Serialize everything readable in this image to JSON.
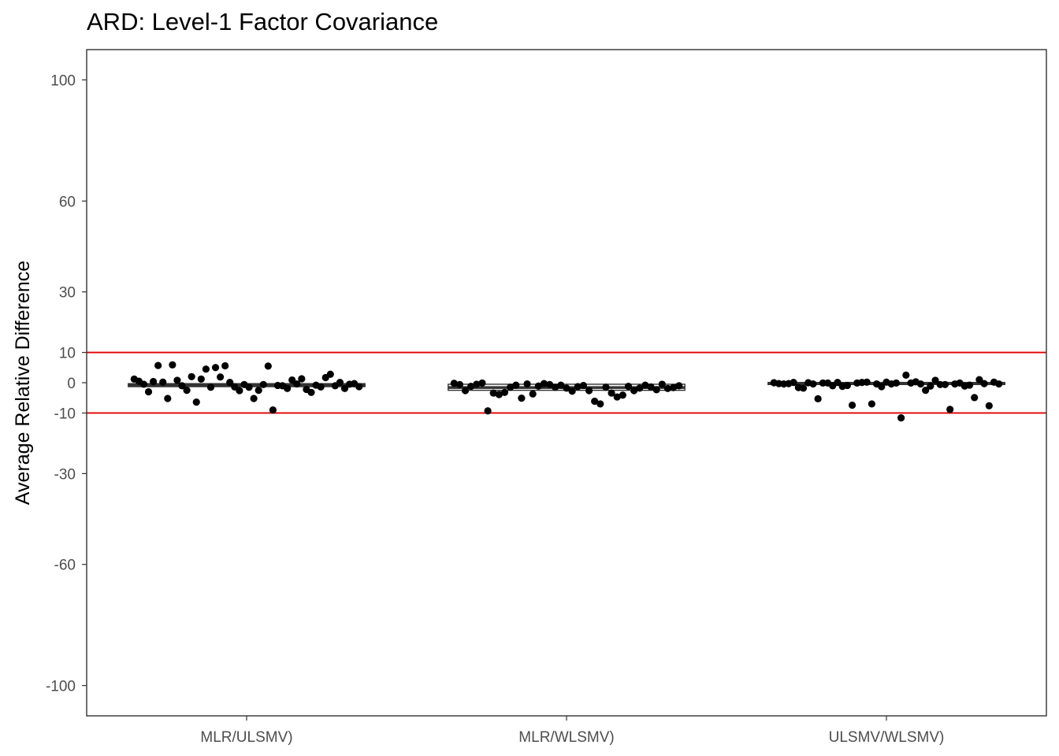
{
  "chart_data": {
    "type": "box",
    "title": "ARD: Level-1 Factor Covariance",
    "xlabel": "",
    "ylabel": "Average Relative Difference",
    "categories": [
      "MLR/ULSMV)",
      "MLR/WLSMV)",
      "ULSMV/WLSMV)"
    ],
    "y_ticks": [
      100,
      60,
      30,
      10,
      0,
      -10,
      -30,
      -60,
      -100
    ],
    "y_tick_labels": [
      "100",
      "60",
      "30",
      "10",
      "0",
      "-10",
      "-30",
      "-60",
      "-100"
    ],
    "ylim": [
      -110,
      110
    ],
    "reference_lines": [
      {
        "value": 10,
        "color": "#e00000"
      },
      {
        "value": -10,
        "color": "#e00000"
      }
    ],
    "boxes": [
      {
        "category": "MLR/ULSMV)",
        "q1": -1.3,
        "median": -0.8,
        "q3": -0.3
      },
      {
        "category": "MLR/WLSMV)",
        "q1": -2.5,
        "median": -1.6,
        "q3": -0.5
      },
      {
        "category": "ULSMV/WLSMV)",
        "q1": -0.6,
        "median": -0.2,
        "q3": 0.1
      }
    ],
    "points": [
      {
        "category": "MLR/ULSMV)",
        "y": [
          1.2,
          0.5,
          -0.5,
          -3,
          0.4,
          5.7,
          0.2,
          -5.2,
          5.9,
          0.8,
          -1,
          -2.5,
          2,
          -6.4,
          1.2,
          4.5,
          -1.5,
          5,
          1.9,
          5.6,
          0.1,
          -1.4,
          -2.6,
          -0.6,
          -1.5,
          -5.2,
          -2.5,
          -0.6,
          5.5,
          -9,
          -0.9,
          -1,
          -1.9,
          0.9,
          -0.4,
          1.3,
          -2.2,
          -3.2,
          -0.8,
          -1.4,
          1.7,
          2.8,
          -1,
          0.1,
          -1.9,
          -0.5,
          -0.3,
          -1.3
        ]
      },
      {
        "category": "MLR/WLSMV)",
        "y": [
          -0.2,
          -0.6,
          -2.6,
          -1.2,
          -0.5,
          -0.1,
          -9.3,
          -3.4,
          -3.9,
          -3.2,
          -1.5,
          -0.8,
          -5.1,
          -0.4,
          -3.7,
          -1.1,
          -0.3,
          -0.6,
          -1.5,
          -0.8,
          -1.8,
          -2.8,
          -1.3,
          -0.9,
          -2.6,
          -6.1,
          -7,
          -1.5,
          -3.4,
          -4.7,
          -4.1,
          -1.2,
          -2.6,
          -1.8,
          -0.8,
          -1.4,
          -2.3,
          -0.5,
          -1.9,
          -1.6,
          -1
        ]
      },
      {
        "category": "ULSMV/WLSMV)",
        "y": [
          0,
          -0.3,
          -0.4,
          -0.3,
          0.1,
          -1.6,
          -1.8,
          0,
          -0.4,
          -5.3,
          -0.1,
          -0.1,
          -1,
          0.1,
          -1.2,
          -0.9,
          -7.4,
          -0.1,
          0.1,
          0.2,
          -7,
          -0.4,
          -1.3,
          0.2,
          -0.4,
          -0.1,
          -11.6,
          2.5,
          -0.1,
          0.3,
          -0.4,
          -2.5,
          -1.1,
          0.8,
          -0.6,
          -0.6,
          -8.8,
          -0.4,
          -0.1,
          -1.1,
          -0.8,
          -4.9,
          1,
          -0.3,
          -7.6,
          0.2,
          -0.4
        ]
      }
    ],
    "grid": false,
    "legend": "none"
  }
}
